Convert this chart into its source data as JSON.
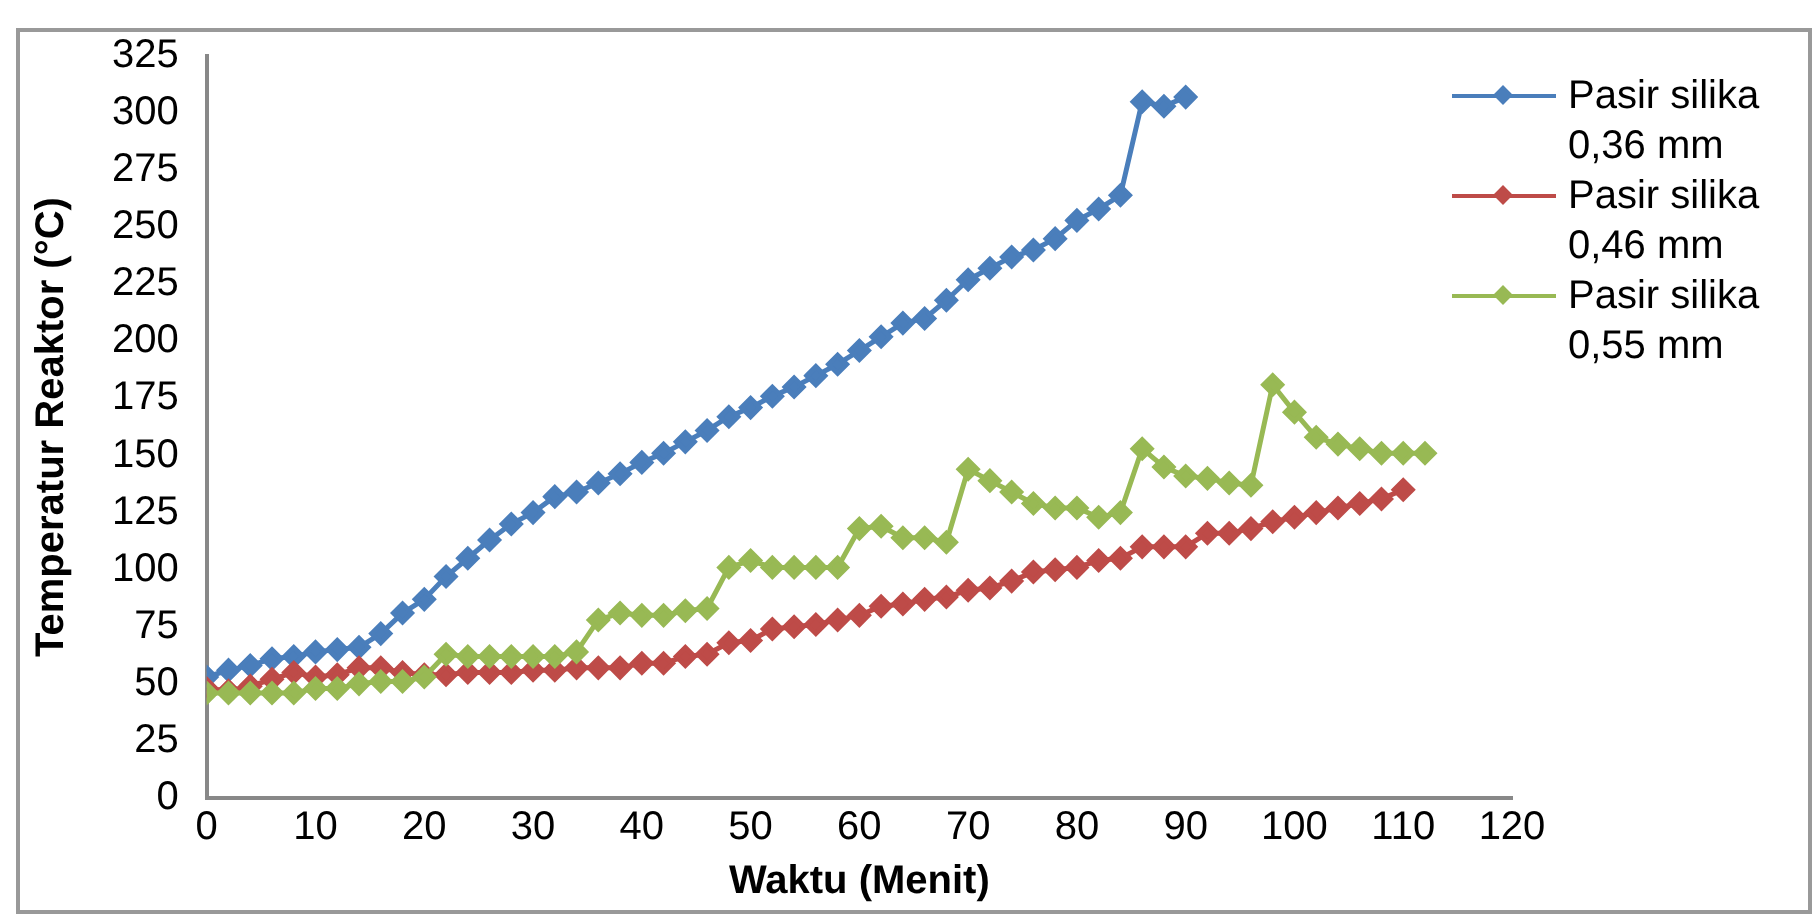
{
  "chart_data": {
    "type": "line",
    "xlabel": "Waktu (Menit)",
    "ylabel": "Temperatur Reaktor (°C)",
    "xlim": [
      0,
      120
    ],
    "xticks": [
      0,
      10,
      20,
      30,
      40,
      50,
      60,
      70,
      80,
      90,
      100,
      110,
      120
    ],
    "ylim": [
      0,
      325
    ],
    "yticks": [
      0,
      25,
      50,
      75,
      100,
      125,
      150,
      175,
      200,
      225,
      250,
      275,
      300,
      325
    ],
    "grid": false,
    "legend": "top right",
    "marker": "diamond",
    "line_style": "solid",
    "series": [
      {
        "name": "Pasir silika 0,36 mm",
        "color": "#4a7ebb",
        "x": [
          0,
          2,
          4,
          6,
          8,
          10,
          12,
          14,
          16,
          18,
          20,
          22,
          24,
          26,
          28,
          30,
          32,
          34,
          36,
          38,
          40,
          42,
          44,
          46,
          48,
          50,
          52,
          54,
          56,
          58,
          60,
          62,
          64,
          66,
          68,
          70,
          72,
          74,
          76,
          78,
          80,
          82,
          84,
          86,
          88,
          90
        ],
        "values": [
          53,
          56,
          58,
          61,
          62,
          64,
          65,
          66,
          72,
          81,
          87,
          97,
          105,
          113,
          120,
          125,
          132,
          134,
          138,
          142,
          147,
          151,
          156,
          161,
          167,
          171,
          176,
          180,
          185,
          190,
          196,
          202,
          208,
          210,
          218,
          227,
          232,
          237,
          240,
          245,
          253,
          258,
          264,
          305,
          303,
          307
        ]
      },
      {
        "name": "Pasir silika 0,46 mm",
        "color": "#be4b48",
        "x": [
          0,
          2,
          4,
          6,
          8,
          10,
          12,
          14,
          16,
          18,
          20,
          22,
          24,
          26,
          28,
          30,
          32,
          34,
          36,
          38,
          40,
          42,
          44,
          46,
          48,
          50,
          52,
          54,
          56,
          58,
          60,
          62,
          64,
          66,
          68,
          70,
          72,
          74,
          76,
          78,
          80,
          82,
          84,
          86,
          88,
          90,
          92,
          94,
          96,
          98,
          100,
          102,
          104,
          106,
          108,
          110
        ],
        "values": [
          48,
          47,
          49,
          52,
          55,
          53,
          54,
          57,
          57,
          55,
          54,
          54,
          55,
          55,
          55,
          56,
          56,
          57,
          57,
          57,
          59,
          59,
          62,
          63,
          68,
          69,
          74,
          75,
          76,
          78,
          80,
          84,
          85,
          87,
          88,
          91,
          92,
          95,
          99,
          100,
          101,
          104,
          105,
          110,
          110,
          110,
          116,
          116,
          118,
          121,
          123,
          125,
          127,
          129,
          131,
          135
        ]
      },
      {
        "name": "Pasir silika 0,55 mm",
        "color": "#98b954",
        "x": [
          0,
          2,
          4,
          6,
          8,
          10,
          12,
          14,
          16,
          18,
          20,
          22,
          24,
          26,
          28,
          30,
          32,
          34,
          36,
          38,
          40,
          42,
          44,
          46,
          48,
          50,
          52,
          54,
          56,
          58,
          60,
          62,
          64,
          66,
          68,
          70,
          72,
          74,
          76,
          78,
          80,
          82,
          84,
          86,
          88,
          90,
          92,
          94,
          96,
          98,
          100,
          102,
          104,
          106,
          108,
          110,
          112
        ],
        "values": [
          46,
          46,
          46,
          46,
          46,
          48,
          48,
          50,
          51,
          51,
          53,
          63,
          62,
          62,
          62,
          62,
          62,
          64,
          78,
          81,
          80,
          80,
          82,
          83,
          101,
          104,
          101,
          101,
          101,
          101,
          118,
          119,
          114,
          114,
          112,
          144,
          139,
          134,
          129,
          127,
          127,
          123,
          125,
          153,
          145,
          141,
          140,
          138,
          137,
          181,
          169,
          158,
          155,
          153,
          151,
          151,
          151
        ]
      }
    ]
  }
}
